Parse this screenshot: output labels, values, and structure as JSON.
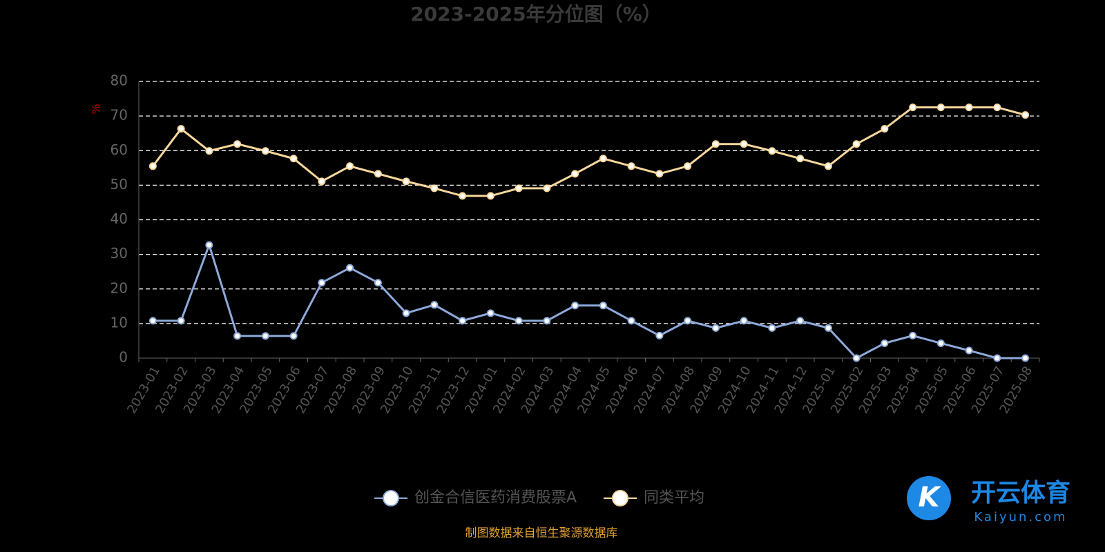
{
  "chart_data": {
    "type": "line",
    "title": "2023-2025年分位图（%）",
    "y_label": "%",
    "categories": [
      "2023-01",
      "2023-02",
      "2023-03",
      "2023-04",
      "2023-05",
      "2023-06",
      "2023-07",
      "2023-08",
      "2023-09",
      "2023-10",
      "2023-11",
      "2023-12",
      "2024-01",
      "2024-02",
      "2024-03",
      "2024-04",
      "2024-05",
      "2024-06",
      "2024-07",
      "2024-08",
      "2024-09",
      "2024-10",
      "2024-11",
      "2024-12",
      "2025-01",
      "2025-02",
      "2025-03",
      "2025-04",
      "2025-05",
      "2025-06",
      "2025-07",
      "2025-08"
    ],
    "series": [
      {
        "name": "创金合信医药消费股票A",
        "color": "#8eaadb",
        "values": [
          10.8,
          10.8,
          32.7,
          6.4,
          6.4,
          6.4,
          21.8,
          26.1,
          21.8,
          13.0,
          15.4,
          10.8,
          13.0,
          10.8,
          10.8,
          15.2,
          15.2,
          10.8,
          6.5,
          10.8,
          8.7,
          10.8,
          8.7,
          10.8,
          8.7,
          0,
          4.3,
          6.5,
          4.3,
          2.2,
          0,
          0
        ]
      },
      {
        "name": "同类平均",
        "color": "#f8d89c",
        "values": [
          55.5,
          66.3,
          59.9,
          61.9,
          59.9,
          57.7,
          51.1,
          55.5,
          53.3,
          51.1,
          49.1,
          46.9,
          46.9,
          49.1,
          49.1,
          53.3,
          57.7,
          55.5,
          53.3,
          55.5,
          61.9,
          61.9,
          59.9,
          57.7,
          55.5,
          61.9,
          66.3,
          72.5,
          72.5,
          72.5,
          72.5,
          70.3
        ]
      }
    ],
    "ylim": [
      0,
      80
    ],
    "yticks": [
      0,
      10,
      20,
      30,
      40,
      50,
      60,
      70,
      80
    ],
    "grid": true
  },
  "footer": {
    "source": "制图数据来自恒生聚源数据库"
  },
  "watermark": {
    "brand": "开云体育",
    "url": "Kaiyun.com"
  }
}
